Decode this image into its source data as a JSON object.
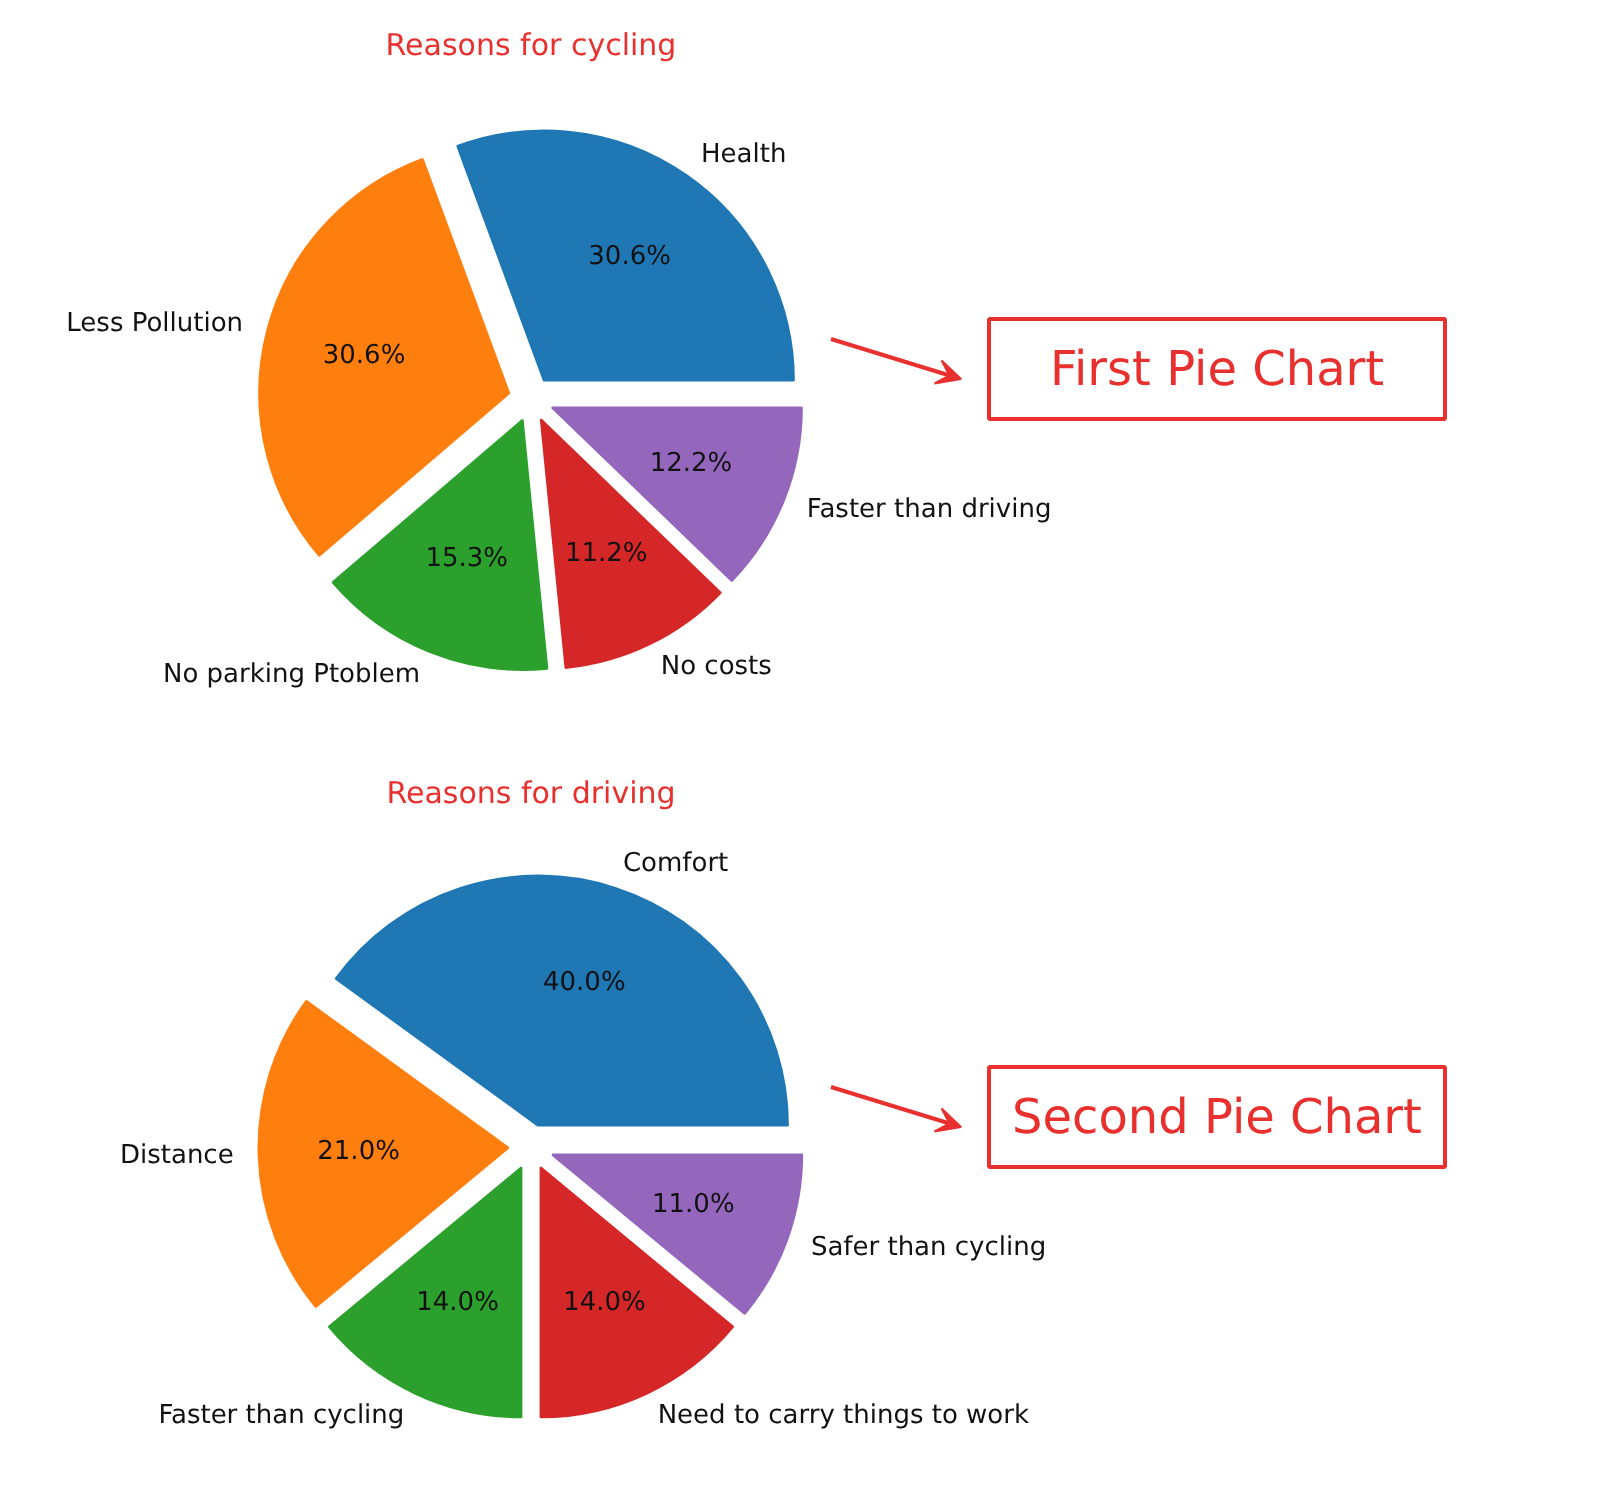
{
  "chart_data": [
    {
      "type": "pie",
      "title": "Reasons for cycling",
      "categories": [
        "Health",
        "Less Pollution",
        "No parking Ptoblem",
        "No costs",
        "Faster than driving"
      ],
      "values": [
        30.6,
        30.6,
        15.3,
        11.2,
        12.2
      ],
      "colors": [
        "#1f77b4",
        "#ff7f0e",
        "#2ca02c",
        "#d62728",
        "#9467bd"
      ],
      "value_labels": [
        "30.6%",
        "30.6%",
        "15.3%",
        "11.2%",
        "12.2%"
      ],
      "annotations": [
        "First Pie Chart"
      ]
    },
    {
      "type": "pie",
      "title": "Reasons for driving",
      "categories": [
        "Comfort",
        "Distance",
        "Faster than cycling",
        "Need to carry things to work",
        "Safer than cycling"
      ],
      "values": [
        40.0,
        21.0,
        14.0,
        14.0,
        11.0
      ],
      "colors": [
        "#1f77b4",
        "#ff7f0e",
        "#2ca02c",
        "#d62728",
        "#9467bd"
      ],
      "value_labels": [
        "40.0%",
        "21.0%",
        "14.0%",
        "14.0%",
        "11.0%"
      ],
      "annotations": [
        "Second Pie Chart"
      ]
    }
  ]
}
